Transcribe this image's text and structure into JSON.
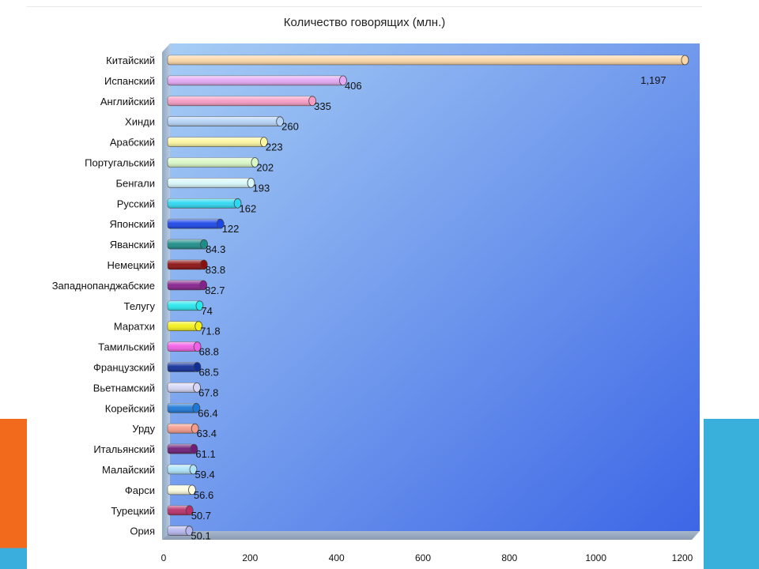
{
  "chart_data": {
    "type": "bar",
    "orientation": "horizontal",
    "title": "Количество говорящих (млн.)",
    "xlabel": "",
    "ylabel": "",
    "xlim": [
      0,
      1200
    ],
    "xticks": [
      "0",
      "200",
      "400",
      "600",
      "800",
      "1000",
      "1200"
    ],
    "grid": false,
    "legend": "none",
    "categories": [
      "Китайский",
      "Испанский",
      "Английский",
      "Хинди",
      "Арабский",
      "Португальский",
      "Бенгали",
      "Русский",
      "Японский",
      "Яванский",
      "Немецкий",
      "Западнопанджабские",
      "Телугу",
      "Маратхи",
      "Тамильский",
      "Французский",
      "Вьетнамский",
      "Корейский",
      "Урду",
      "Итальянский",
      "Малайский",
      "Фарси",
      "Турецкий",
      "Ория"
    ],
    "values": [
      1197,
      406,
      335,
      260,
      223,
      202,
      193,
      162,
      122,
      84.3,
      83.8,
      82.7,
      74,
      71.8,
      68.8,
      68.5,
      67.8,
      66.4,
      63.4,
      61.1,
      59.4,
      56.6,
      50.7,
      50.1
    ],
    "value_labels": [
      "1,197",
      "406",
      "335",
      "260",
      "223",
      "202",
      "193",
      "162",
      "122",
      "84.3",
      "83.8",
      "82.7",
      "74",
      "71.8",
      "68.8",
      "68.5",
      "67.8",
      "66.4",
      "63.4",
      "61.1",
      "59.4",
      "56.6",
      "50.7",
      "50.1"
    ],
    "colors": [
      "#fbd6a6",
      "#e4a8f4",
      "#f79cc4",
      "#b6d4f6",
      "#fcf6a0",
      "#d8f8c6",
      "#d8f8fa",
      "#2ed8f2",
      "#1a46e8",
      "#1c8c88",
      "#8c1010",
      "#86208c",
      "#26e8ee",
      "#f4f01a",
      "#f25ee6",
      "#102e9a",
      "#d6d6f6",
      "#1e78d6",
      "#f49a8a",
      "#6e1e78",
      "#aee4fa",
      "#fcfce0",
      "#b8306a",
      "#b6b6ee"
    ],
    "background_colors": {
      "plot_top": "#a6cdf4",
      "plot_bottom": "#3c66e6"
    }
  }
}
